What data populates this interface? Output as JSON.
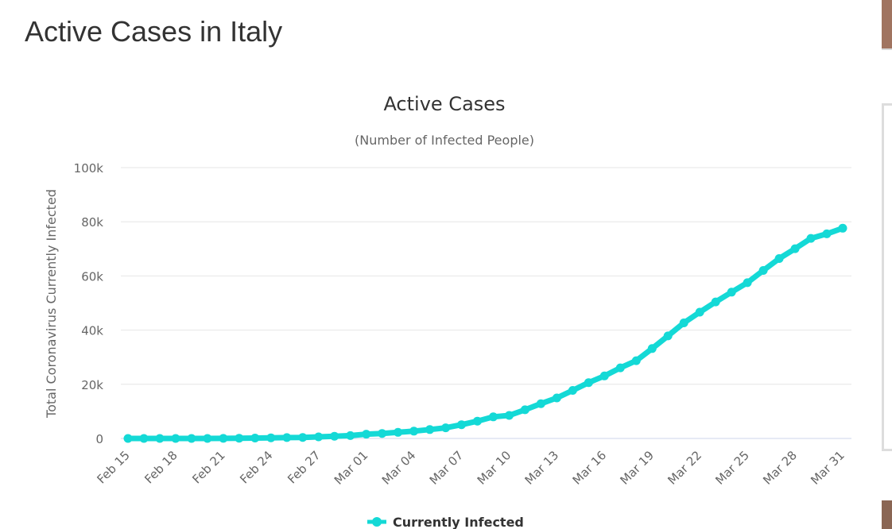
{
  "page": {
    "heading": "Active Cases in Italy"
  },
  "colors": {
    "series": "#14d9d6",
    "grid": "#e6e6e6",
    "axis": "#ccd6eb"
  },
  "chart_data": {
    "type": "line",
    "title": "Active Cases",
    "subtitle": "(Number of Infected People)",
    "xlabel": "",
    "ylabel": "Total Coronavirus Currently Infected",
    "ylim": [
      0,
      100000
    ],
    "yticks": [
      0,
      20000,
      40000,
      60000,
      80000,
      100000
    ],
    "ytick_labels": [
      "0",
      "20k",
      "40k",
      "60k",
      "80k",
      "100k"
    ],
    "categories": [
      "Feb 15",
      "Feb 16",
      "Feb 17",
      "Feb 18",
      "Feb 19",
      "Feb 20",
      "Feb 21",
      "Feb 22",
      "Feb 23",
      "Feb 24",
      "Feb 25",
      "Feb 26",
      "Feb 27",
      "Feb 28",
      "Feb 29",
      "Mar 01",
      "Mar 02",
      "Mar 03",
      "Mar 04",
      "Mar 05",
      "Mar 06",
      "Mar 07",
      "Mar 08",
      "Mar 09",
      "Mar 10",
      "Mar 11",
      "Mar 12",
      "Mar 13",
      "Mar 14",
      "Mar 15",
      "Mar 16",
      "Mar 17",
      "Mar 18",
      "Mar 19",
      "Mar 20",
      "Mar 21",
      "Mar 22",
      "Mar 23",
      "Mar 24",
      "Mar 25",
      "Mar 26",
      "Mar 27",
      "Mar 28",
      "Mar 29",
      "Mar 30",
      "Mar 31"
    ],
    "xtick_labels": [
      "Feb 15",
      "Feb 18",
      "Feb 21",
      "Feb 24",
      "Feb 27",
      "Mar 01",
      "Mar 04",
      "Mar 07",
      "Mar 10",
      "Mar 13",
      "Mar 16",
      "Mar 19",
      "Mar 22",
      "Mar 25",
      "Mar 28",
      "Mar 31"
    ],
    "series": [
      {
        "name": "Currently Infected",
        "values": [
          3,
          3,
          3,
          3,
          3,
          3,
          20,
          79,
          150,
          221,
          311,
          385,
          588,
          821,
          1049,
          1577,
          1835,
          2263,
          2706,
          3296,
          3916,
          5061,
          6387,
          7985,
          8514,
          10590,
          12839,
          14955,
          17750,
          20603,
          23073,
          26062,
          28710,
          33190,
          37860,
          42681,
          46638,
          50418,
          54030,
          57521,
          62013,
          66414,
          70065,
          73880,
          75528,
          77635
        ]
      }
    ],
    "legend": {
      "position": "bottom-center",
      "label": "Currently Infected"
    }
  }
}
